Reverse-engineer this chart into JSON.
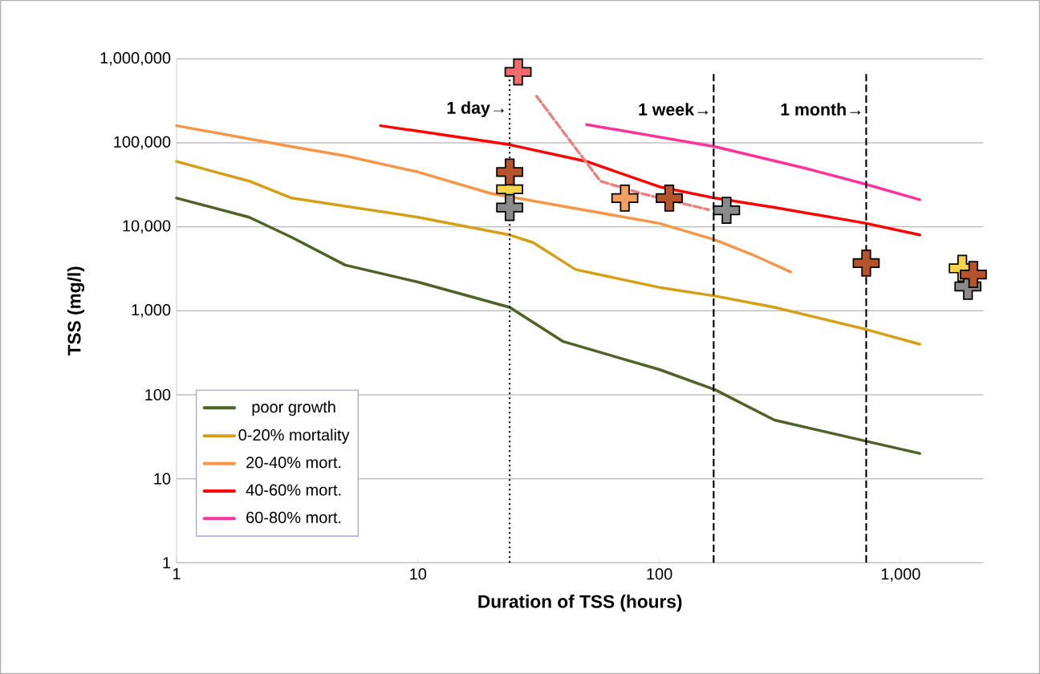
{
  "chart_data": {
    "type": "line",
    "xlabel": "Duration of TSS (hours)",
    "ylabel": "TSS (mg/l)",
    "log": "xy",
    "grid": "y",
    "legend": "bottom left",
    "xlim": [
      1,
      2200
    ],
    "ylim": [
      1,
      1000000
    ],
    "xticks": [
      1,
      10,
      100,
      {
        "value": 1000,
        "label": "1,000"
      }
    ],
    "yticks": [
      1,
      10,
      100,
      {
        "value": 1000,
        "label": "1,000"
      },
      {
        "value": 10000,
        "label": "10,000"
      },
      {
        "value": 100000,
        "label": "100,000"
      },
      {
        "value": 1000000,
        "label": "1,000,000"
      }
    ],
    "series": [
      {
        "name": "poor growth",
        "color": "#4f6228",
        "x": [
          1,
          2,
          3,
          5,
          10,
          24,
          40,
          100,
          170,
          300,
          720,
          1200
        ],
        "values": [
          22000,
          13000,
          7500,
          3500,
          2200,
          1100,
          430,
          200,
          115,
          50,
          28,
          20
        ]
      },
      {
        "name": "0-20% mortality",
        "color": "#d4a017",
        "x": [
          1,
          2,
          3,
          10,
          24,
          30,
          45,
          100,
          170,
          300,
          720,
          1200
        ],
        "values": [
          60000,
          35000,
          22000,
          13000,
          8000,
          6500,
          3100,
          1900,
          1500,
          1100,
          600,
          400
        ]
      },
      {
        "name": "20-40% mort.",
        "color": "#f79646",
        "x": [
          1,
          3,
          5,
          10,
          20,
          100,
          170,
          250,
          350
        ],
        "values": [
          160000,
          90000,
          70000,
          45000,
          25000,
          11000,
          7000,
          4500,
          2900
        ]
      },
      {
        "name": "40-60% mort.",
        "color": "#ff0000",
        "x": [
          7,
          24,
          50,
          100,
          170,
          300,
          720,
          1200
        ],
        "values": [
          160000,
          95000,
          60000,
          30000,
          22000,
          17000,
          11000,
          8000
        ]
      },
      {
        "name": "60-80% mort.",
        "color": "#ff3399",
        "x": [
          50,
          170,
          400,
          720,
          1200
        ],
        "values": [
          165000,
          90000,
          50000,
          32000,
          21000
        ]
      },
      {
        "type": "line",
        "line_style": "dashed",
        "color": "#e6837e",
        "x": [
          31,
          57,
          84,
          160
        ],
        "values": [
          360000,
          35000,
          25000,
          16000
        ]
      },
      {
        "type": "scatter",
        "marker": "cross",
        "color": "#f26b6b",
        "x": [
          26
        ],
        "values": [
          700000
        ]
      },
      {
        "type": "scatter",
        "marker": "cross",
        "color": "#f6d44b",
        "x": [
          24,
          1800
        ],
        "values": [
          28000,
          3200
        ]
      },
      {
        "type": "scatter",
        "marker": "cross",
        "color": "#8a8a8a",
        "x": [
          24,
          190,
          1900
        ],
        "values": [
          17000,
          15700,
          1950
        ]
      },
      {
        "type": "scatter",
        "marker": "cross",
        "color": "#f2a05f",
        "x": [
          72
        ],
        "values": [
          22000
        ]
      },
      {
        "type": "scatter",
        "marker": "cross",
        "color": "#b5532c",
        "x": [
          24,
          110,
          720,
          2000
        ],
        "values": [
          45000,
          22000,
          3700,
          2700
        ]
      }
    ],
    "ref_lines": [
      {
        "axis": "x",
        "value": 24,
        "label": "1 day→",
        "line_style": "dotted",
        "color": "#000000"
      },
      {
        "axis": "x",
        "value": 168,
        "label": "1 week→",
        "line_style": "dashed",
        "color": "#000000"
      },
      {
        "axis": "x",
        "value": 720,
        "label": "1 month→",
        "line_style": "dashed",
        "color": "#000000"
      }
    ]
  }
}
